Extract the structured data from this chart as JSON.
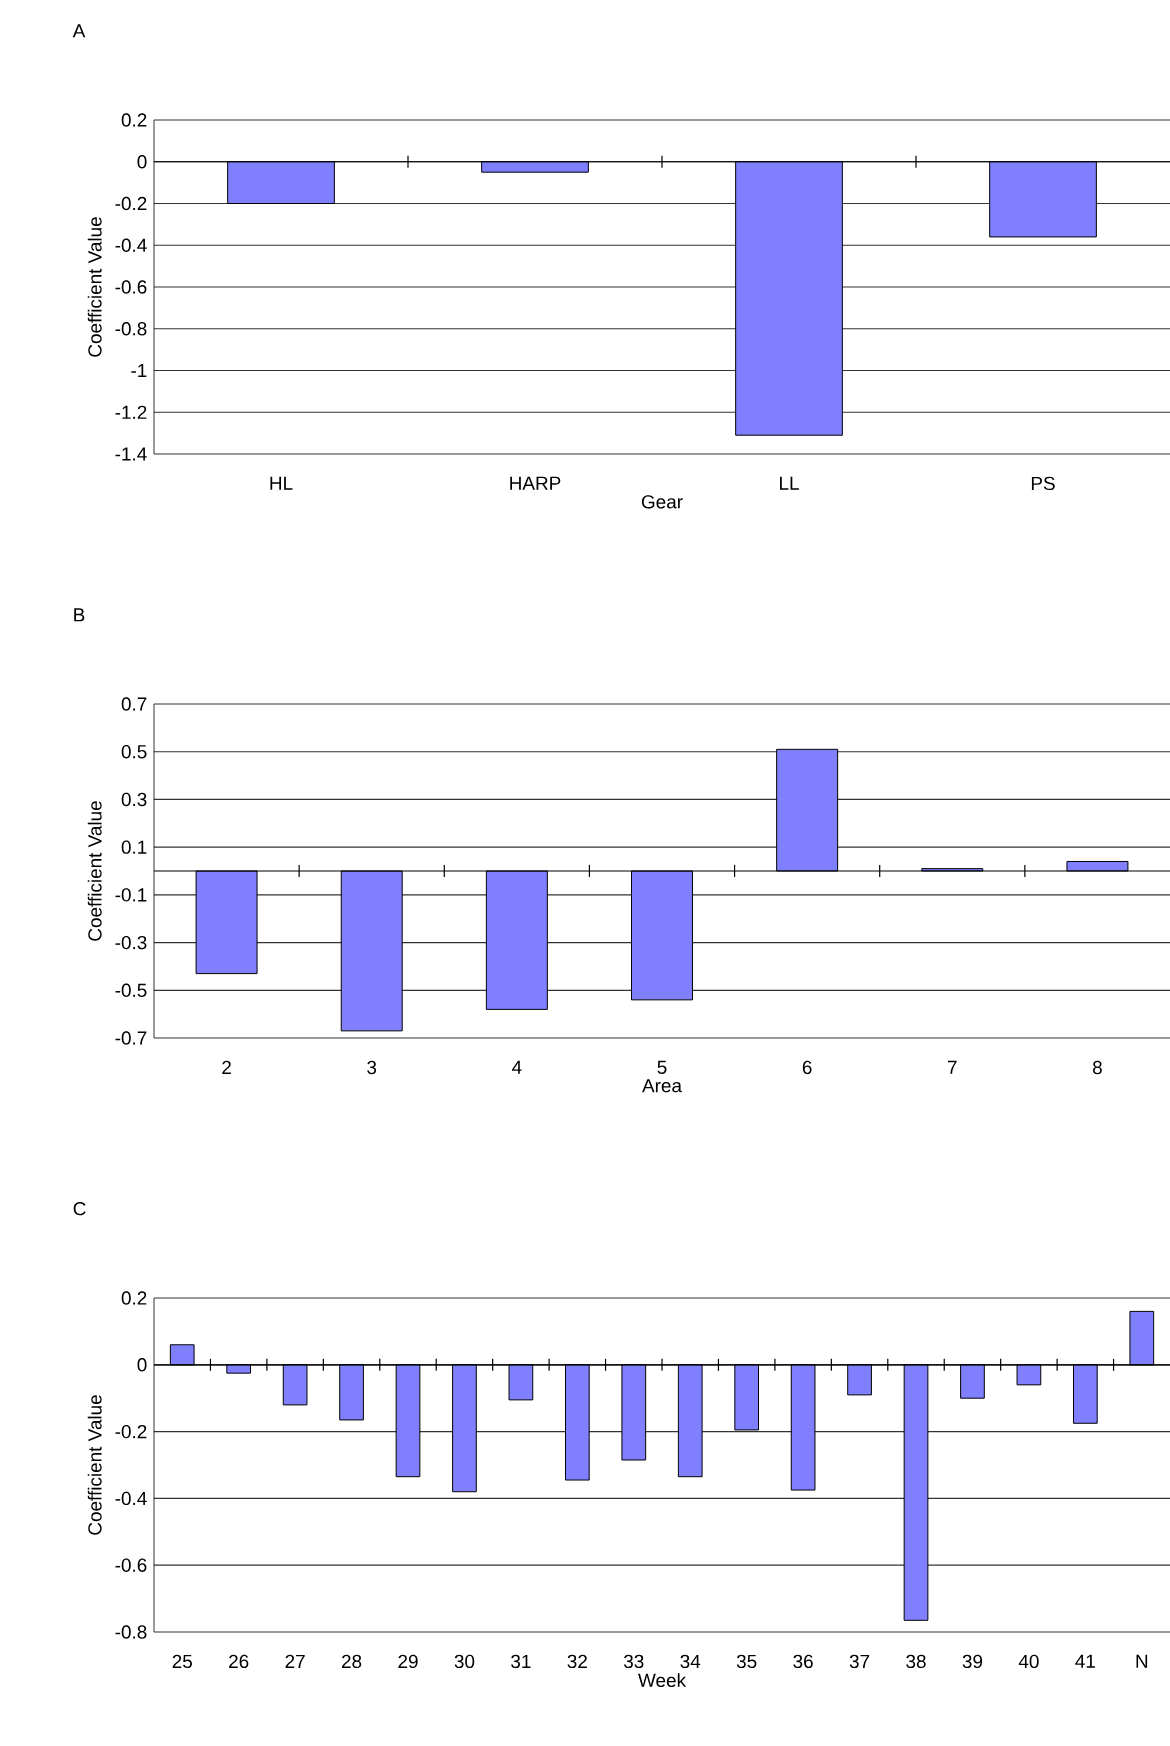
{
  "chart_data": [
    {
      "type": "bar",
      "title": "A",
      "xlabel": "Gear",
      "ylabel": "Coefficient Value",
      "categories": [
        "HL",
        "HARP",
        "LL",
        "PS"
      ],
      "values": [
        -0.2,
        -0.05,
        -1.31,
        -0.36
      ],
      "color": "#8080ff",
      "ylim": [
        -1.4,
        0.2
      ],
      "yticks": [
        -1.4,
        -1.2,
        -1,
        -0.8,
        -0.6,
        -0.4,
        -0.2,
        0,
        0.2
      ],
      "grid": "y"
    },
    {
      "type": "bar",
      "title": "B",
      "xlabel": "Area",
      "ylabel": "Coefficient Value",
      "categories": [
        "2",
        "3",
        "4",
        "5",
        "6",
        "7",
        "8"
      ],
      "values": [
        -0.43,
        -0.67,
        -0.58,
        -0.54,
        0.51,
        0.01,
        0.04
      ],
      "color": "#8080ff",
      "ylim": [
        -0.7,
        0.7
      ],
      "yticks": [
        -0.7,
        -0.5,
        -0.3,
        -0.1,
        0.1,
        0.3,
        0.5,
        0.7
      ],
      "grid": "y"
    },
    {
      "type": "bar",
      "title": "C",
      "xlabel": "Week",
      "ylabel": "Coefficient Value",
      "categories": [
        "25",
        "26",
        "27",
        "28",
        "29",
        "30",
        "31",
        "32",
        "33",
        "34",
        "35",
        "36",
        "37",
        "38",
        "39",
        "40",
        "41",
        "N"
      ],
      "values": [
        0.06,
        -0.025,
        -0.12,
        -0.165,
        -0.335,
        -0.38,
        -0.105,
        -0.345,
        -0.285,
        -0.335,
        -0.195,
        -0.375,
        -0.09,
        -0.765,
        -0.1,
        -0.06,
        -0.175,
        0.16
      ],
      "color": "#8080ff",
      "ylim": [
        -0.8,
        0.2
      ],
      "yticks": [
        -0.8,
        -0.6,
        -0.4,
        -0.2,
        0,
        0.2
      ],
      "grid": "y"
    }
  ]
}
